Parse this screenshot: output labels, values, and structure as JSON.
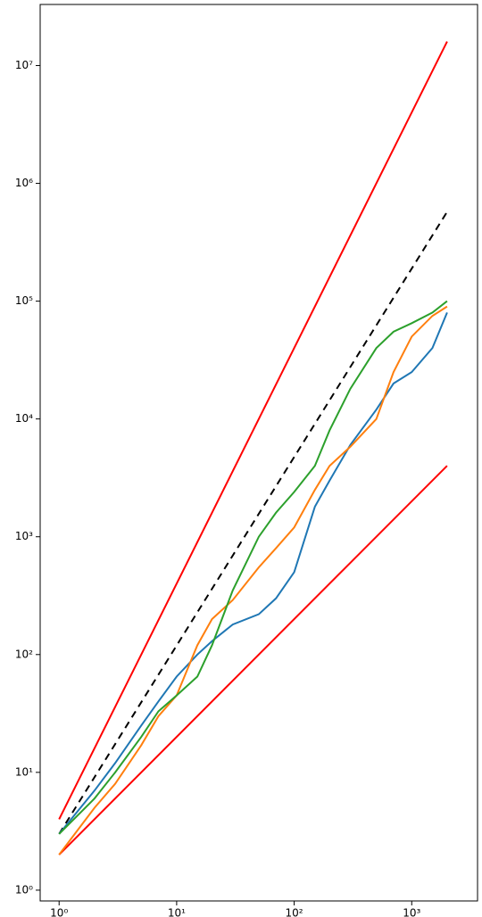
{
  "chart_data": {
    "type": "line",
    "xscale": "log",
    "yscale": "log",
    "xlim": [
      0.69,
      3630
    ],
    "ylim": [
      0.81,
      33000000
    ],
    "xticks": [
      {
        "value": 1,
        "label": "10⁰"
      },
      {
        "value": 10,
        "label": "10¹"
      },
      {
        "value": 100,
        "label": "10²"
      },
      {
        "value": 1000,
        "label": "10³"
      }
    ],
    "yticks": [
      {
        "value": 1,
        "label": "10⁰"
      },
      {
        "value": 10,
        "label": "10¹"
      },
      {
        "value": 100,
        "label": "10²"
      },
      {
        "value": 1000,
        "label": "10³"
      },
      {
        "value": 10000,
        "label": "10⁴"
      },
      {
        "value": 100000,
        "label": "10⁵"
      },
      {
        "value": 1000000,
        "label": "10⁶"
      },
      {
        "value": 10000000,
        "label": "10⁷"
      }
    ],
    "series": [
      {
        "color": "#ff0000",
        "dash": "solid",
        "x": [
          1,
          2000
        ],
        "values": [
          4,
          16000000
        ]
      },
      {
        "color": "#ff0000",
        "dash": "solid",
        "x": [
          1,
          2000
        ],
        "values": [
          2,
          4000
        ]
      },
      {
        "color": "#000000",
        "dash": "dashed",
        "x": [
          1,
          2000
        ],
        "values": [
          3,
          573000
        ]
      },
      {
        "color": "#1f77b4",
        "dash": "solid",
        "x": [
          1,
          2,
          3,
          5,
          7,
          10,
          15,
          20,
          30,
          50,
          70,
          100,
          150,
          200,
          300,
          500,
          700,
          1000,
          1500,
          2000
        ],
        "values": [
          3,
          7,
          12,
          25,
          40,
          65,
          100,
          130,
          180,
          220,
          300,
          500,
          1800,
          3000,
          6000,
          12000,
          20000,
          25000,
          40000,
          80000
        ]
      },
      {
        "color": "#ff7f0e",
        "dash": "solid",
        "x": [
          1,
          2,
          3,
          5,
          7,
          10,
          15,
          20,
          30,
          50,
          70,
          100,
          150,
          200,
          300,
          500,
          700,
          1000,
          1500,
          2000
        ],
        "values": [
          2,
          5,
          8,
          17,
          30,
          45,
          120,
          200,
          290,
          550,
          800,
          1200,
          2500,
          4000,
          5800,
          10000,
          25000,
          50000,
          75000,
          90000
        ]
      },
      {
        "color": "#2ca02c",
        "dash": "solid",
        "x": [
          1,
          2,
          3,
          5,
          7,
          10,
          15,
          20,
          30,
          50,
          70,
          100,
          150,
          200,
          300,
          500,
          700,
          1000,
          1500,
          2000
        ],
        "values": [
          3,
          6,
          10,
          20,
          33,
          45,
          65,
          120,
          350,
          1000,
          1600,
          2400,
          4000,
          8000,
          18000,
          40000,
          55000,
          65000,
          80000,
          100000
        ]
      }
    ]
  }
}
